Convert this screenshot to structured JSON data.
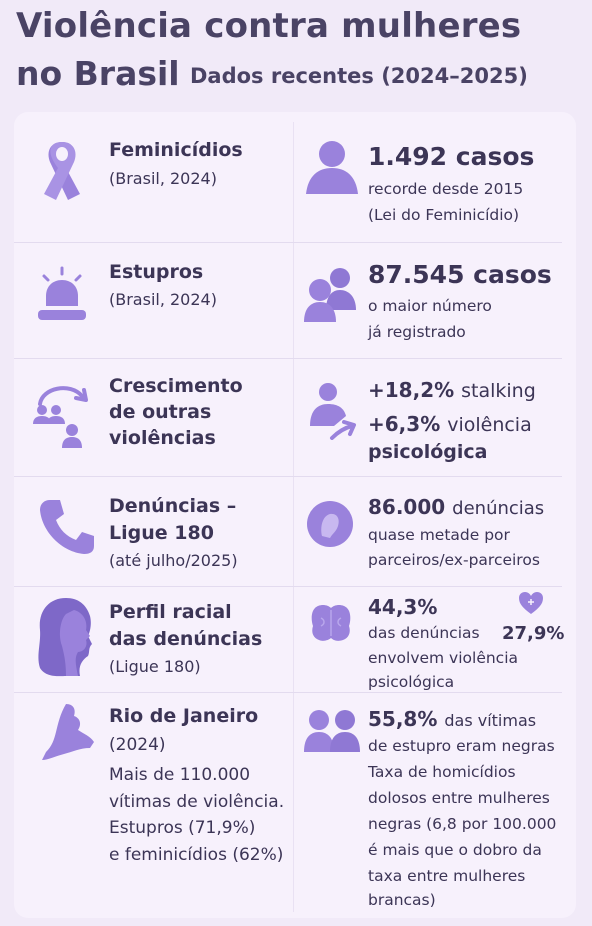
{
  "header": {
    "title_line1": "Violência contra mulheres",
    "title_line2": "no Brasil",
    "subtitle": "Dados recentes (2024–2025)"
  },
  "rows": [
    {
      "left_icon": "ribbon-icon",
      "left_title": "Feminicídios",
      "left_sub": "(Brasil, 2024)",
      "right_icon": "person-icon",
      "right_value": "1.492 casos",
      "right_text1": "recorde desde 2015",
      "right_text2": "(Lei do Feminicídio)"
    },
    {
      "left_icon": "siren-icon",
      "left_title": "Estupros",
      "left_sub": "(Brasil, 2024)",
      "right_icon": "two-people-icon",
      "right_value": "87.545 casos",
      "right_text1": "o maior número",
      "right_text2": "já registrado"
    },
    {
      "left_icon": "group-arrow-icon",
      "left_title1": "Crescimento",
      "left_title2": "de outras",
      "left_title3": "violências",
      "right_icon": "person-arrow-icon",
      "right_value1": "+18,2%",
      "right_label1": "stalking",
      "right_value2": "+6,3%",
      "right_label2a": "violência",
      "right_label2b": "psicológica"
    },
    {
      "left_icon": "phone-icon",
      "left_title1": "Denúncias –",
      "left_title2": "Ligue 180",
      "left_sub": "(até julho/2025)",
      "right_icon": "face-circle-icon",
      "right_value": "86.000",
      "right_label": "denúncias",
      "right_text1": "quase metade por",
      "right_text2": "parceiros/ex-parceiros"
    },
    {
      "left_icon": "woman-profile-icon",
      "left_title1": "Perfil racial",
      "left_title2": "das denúncias",
      "left_sub": "(Ligue 180)",
      "right_icon": "brain-icon",
      "right_value": "44,3%",
      "right_text1": "das denúncias",
      "right_value2": "27,9%",
      "right_text2": "envolvem violência",
      "right_text3": "psicológica",
      "heart_icon": "heart-icon"
    },
    {
      "left_icon": "state-map-icon",
      "left_title": "Rio de Janeiro",
      "left_sub": "(2024)",
      "left_text1": "Mais de 110.000",
      "left_text2": "vítimas de violência.",
      "left_text3": "Estupros (71,9%)",
      "left_text4": "e feminicídios (62%)",
      "right_icon": "two-people-icon",
      "right_value": "55,8%",
      "right_label": "das vítimas",
      "right_text1": "de estupro eram negras",
      "right_text2": "Taxa de homicídios",
      "right_text3": "dolosos entre mulheres",
      "right_text4": "negras (6,8 por 100.000",
      "right_text5": "é mais que o dobro da",
      "right_text6": "taxa entre mulheres",
      "right_text7": "brancas)"
    }
  ],
  "colors": {
    "background": "#f1eaf8",
    "card": "#f7f1fc",
    "icon": "#9a82dc",
    "text": "#3c3556"
  }
}
